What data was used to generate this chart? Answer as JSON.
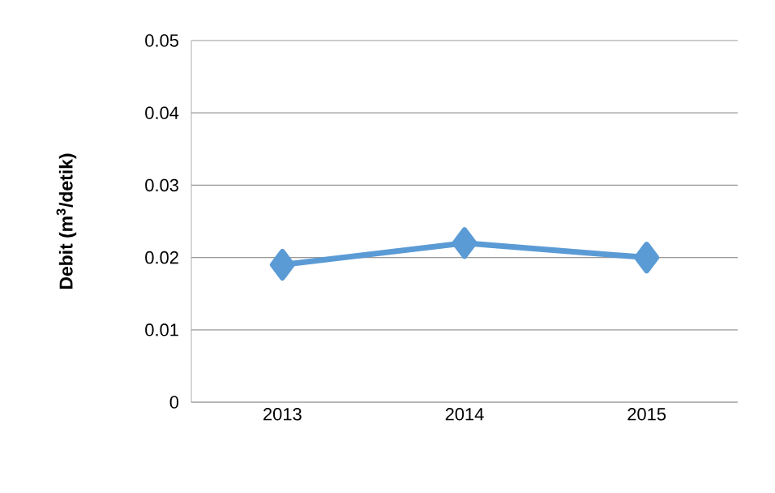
{
  "chart_data": {
    "type": "line",
    "ylabel": "Debit (m$^{3}$/detik)",
    "categories": [
      "2013",
      "2014",
      "2015"
    ],
    "series": [
      {
        "color": "#5b9bd5",
        "values": [
          0.019,
          0.022,
          0.02
        ]
      }
    ],
    "ylim": [
      0,
      0.05
    ],
    "yticks": [
      0,
      0.01,
      0.02,
      0.03,
      0.04,
      0.05
    ],
    "grid": "y",
    "marker": "diamond",
    "line_style": "solid"
  }
}
